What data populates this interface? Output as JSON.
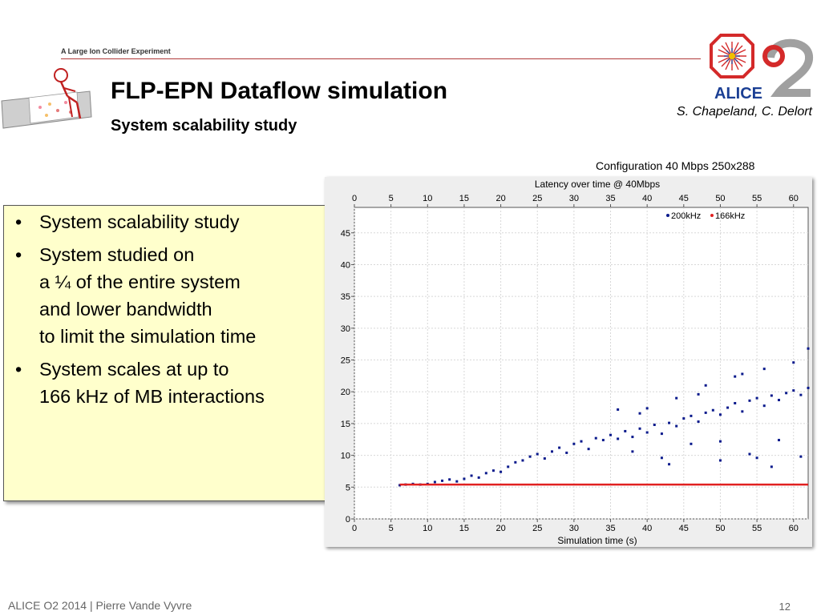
{
  "header": {
    "tagline": "A Large Ion Collider Experiment",
    "title": "FLP-EPN Dataflow simulation",
    "subtitle": "System scalability study",
    "authors": "S. Chapeland, C. Delort",
    "logo_text": "ALICE",
    "colors": {
      "rule": "#b03a3a",
      "logo_red": "#d42a2a",
      "logo_blue": "#1b3f94"
    }
  },
  "bullets": {
    "items": [
      "System scalability study",
      "System studied on\na ¼ of the entire system\nand lower bandwidth\nto limit the simulation time",
      "System scales at up to\n166 kHz of MB interactions"
    ]
  },
  "chart": {
    "caption": "Configuration 40 Mbps 250x288"
  },
  "chart_data": {
    "type": "scatter",
    "title": "Latency over time @ 40Mbps",
    "xlabel": "Simulation time (s)",
    "ylabel": "",
    "xlim": [
      0,
      62
    ],
    "ylim": [
      0,
      49
    ],
    "xticks": [
      0,
      5,
      10,
      15,
      20,
      25,
      30,
      35,
      40,
      45,
      50,
      55,
      60
    ],
    "yticks": [
      0,
      5,
      10,
      15,
      20,
      25,
      30,
      35,
      40,
      45
    ],
    "grid": true,
    "legend_position": "top-right",
    "series": [
      {
        "name": "200kHz",
        "color": "#0a1a8c",
        "points": [
          [
            6.2,
            5.3
          ],
          [
            7,
            5.4
          ],
          [
            8,
            5.5
          ],
          [
            9,
            5.4
          ],
          [
            10,
            5.5
          ],
          [
            11,
            5.8
          ],
          [
            12,
            6.0
          ],
          [
            13,
            6.2
          ],
          [
            14,
            5.9
          ],
          [
            15,
            6.3
          ],
          [
            16,
            6.8
          ],
          [
            17,
            6.5
          ],
          [
            18,
            7.2
          ],
          [
            19,
            7.6
          ],
          [
            20,
            7.4
          ],
          [
            21,
            8.2
          ],
          [
            22,
            8.9
          ],
          [
            23,
            9.2
          ],
          [
            24,
            9.8
          ],
          [
            25,
            10.2
          ],
          [
            26,
            9.5
          ],
          [
            27,
            10.6
          ],
          [
            28,
            11.2
          ],
          [
            29,
            10.4
          ],
          [
            30,
            11.8
          ],
          [
            31,
            12.2
          ],
          [
            32,
            11.0
          ],
          [
            33,
            12.7
          ],
          [
            34,
            12.4
          ],
          [
            35,
            13.2
          ],
          [
            36,
            12.6
          ],
          [
            37,
            13.8
          ],
          [
            38,
            12.9
          ],
          [
            39,
            14.2
          ],
          [
            40,
            13.6
          ],
          [
            41,
            14.8
          ],
          [
            42,
            13.4
          ],
          [
            43,
            15.1
          ],
          [
            44,
            14.6
          ],
          [
            45,
            15.8
          ],
          [
            46,
            16.2
          ],
          [
            47,
            15.3
          ],
          [
            48,
            16.7
          ],
          [
            49,
            17.1
          ],
          [
            50,
            16.4
          ],
          [
            51,
            17.5
          ],
          [
            52,
            18.2
          ],
          [
            53,
            16.9
          ],
          [
            54,
            18.6
          ],
          [
            55,
            19.0
          ],
          [
            56,
            17.8
          ],
          [
            57,
            19.4
          ],
          [
            58,
            18.7
          ],
          [
            59,
            19.8
          ],
          [
            60,
            20.2
          ],
          [
            61,
            19.5
          ],
          [
            62,
            20.6
          ],
          [
            36,
            17.2
          ],
          [
            38,
            10.6
          ],
          [
            40,
            17.4
          ],
          [
            42,
            9.6
          ],
          [
            44,
            19.0
          ],
          [
            46,
            11.8
          ],
          [
            48,
            21.0
          ],
          [
            50,
            12.2
          ],
          [
            52,
            22.4
          ],
          [
            54,
            10.2
          ],
          [
            56,
            23.6
          ],
          [
            58,
            12.4
          ],
          [
            60,
            24.6
          ],
          [
            61,
            9.8
          ],
          [
            62,
            26.8
          ],
          [
            50,
            9.2
          ],
          [
            55,
            9.6
          ],
          [
            57,
            8.2
          ],
          [
            53,
            22.8
          ],
          [
            47,
            19.6
          ],
          [
            43,
            8.6
          ],
          [
            39,
            16.6
          ]
        ]
      },
      {
        "name": "166kHz",
        "color": "#e02020",
        "points": [
          [
            6.2,
            5.4
          ],
          [
            62,
            5.4
          ]
        ]
      }
    ]
  },
  "footer": {
    "left": "ALICE O2  2014 |  Pierre Vande Vyvre",
    "page": "12"
  }
}
